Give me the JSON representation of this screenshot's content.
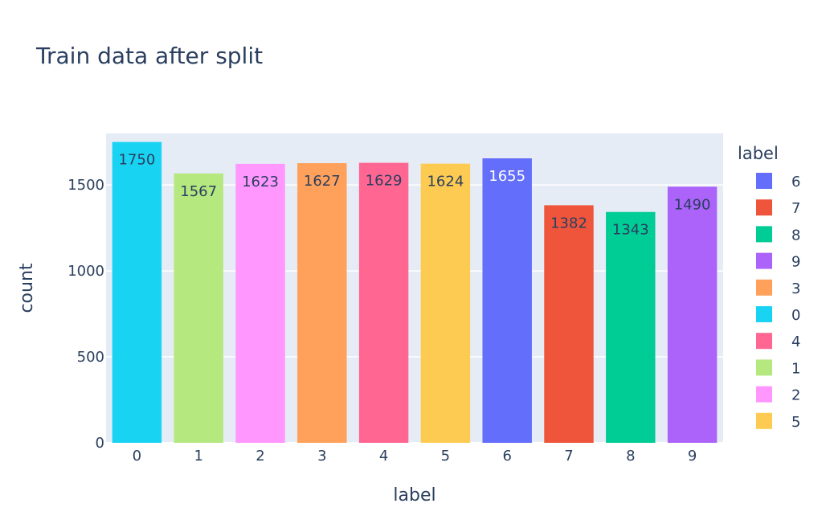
{
  "chart_data": {
    "type": "bar",
    "title": "Train data after split",
    "xlabel": "label",
    "ylabel": "count",
    "ylim": [
      0,
      1800
    ],
    "y_ticks": [
      0,
      500,
      1000,
      1500
    ],
    "grid": true,
    "categories": [
      "0",
      "1",
      "2",
      "3",
      "4",
      "5",
      "6",
      "7",
      "8",
      "9"
    ],
    "values": [
      1750,
      1567,
      1623,
      1627,
      1629,
      1624,
      1655,
      1382,
      1343,
      1490
    ],
    "bar_colors": [
      "#19d3f3",
      "#b6e880",
      "#ff97ff",
      "#ffa15a",
      "#ff6692",
      "#fecb52",
      "#636efa",
      "#ef553b",
      "#00cc96",
      "#ab63fa"
    ],
    "legend": {
      "title": "label",
      "placement": "right",
      "items": [
        {
          "label": "6",
          "color": "#636efa"
        },
        {
          "label": "7",
          "color": "#ef553b"
        },
        {
          "label": "8",
          "color": "#00cc96"
        },
        {
          "label": "9",
          "color": "#ab63fa"
        },
        {
          "label": "3",
          "color": "#ffa15a"
        },
        {
          "label": "0",
          "color": "#19d3f3"
        },
        {
          "label": "4",
          "color": "#ff6692"
        },
        {
          "label": "1",
          "color": "#b6e880"
        },
        {
          "label": "2",
          "color": "#ff97ff"
        },
        {
          "label": "5",
          "color": "#fecb52"
        }
      ]
    }
  }
}
